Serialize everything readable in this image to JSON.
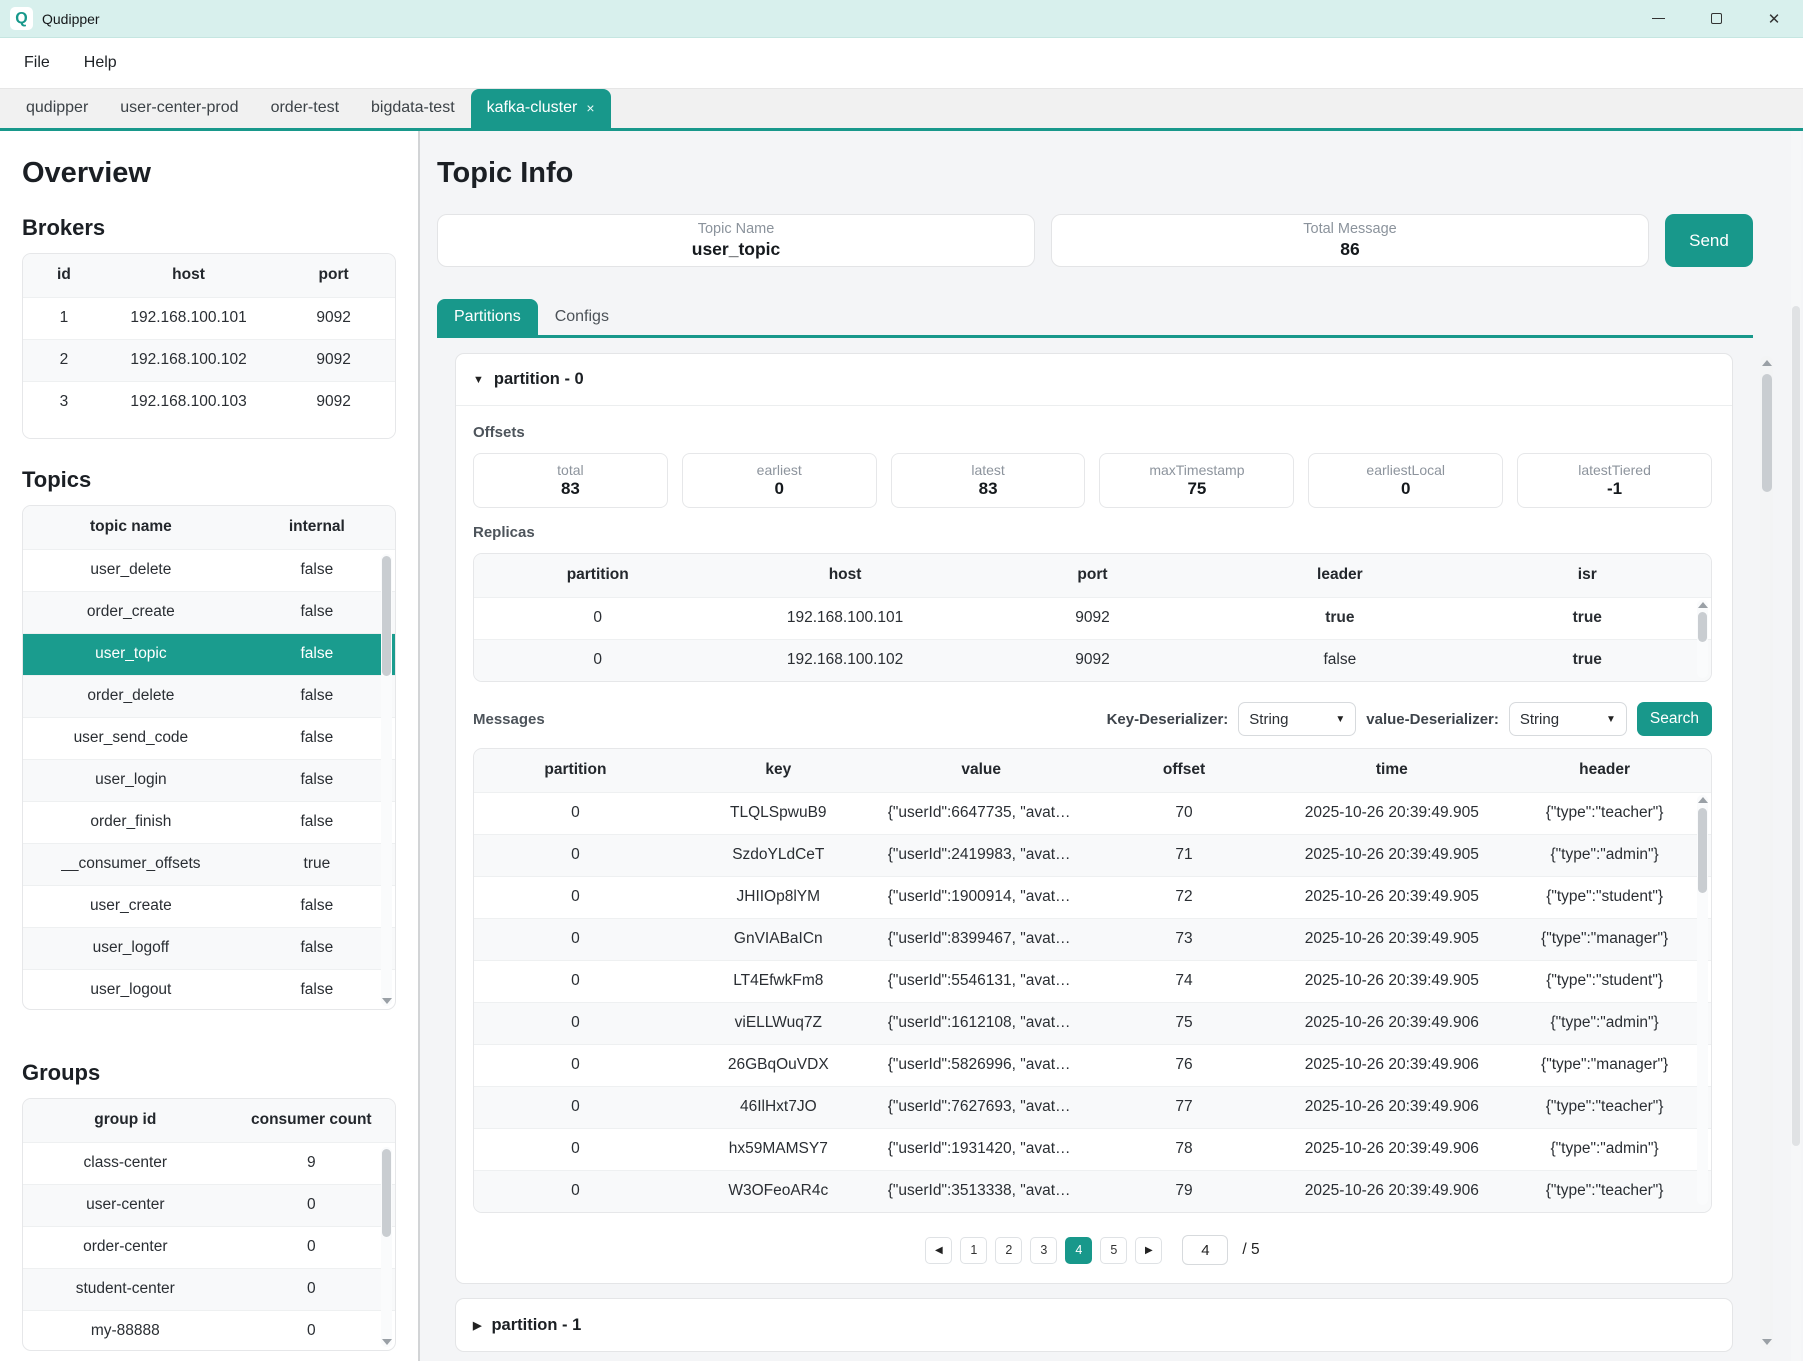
{
  "window": {
    "title": "Qudipper"
  },
  "menu": {
    "items": [
      {
        "label": "File"
      },
      {
        "label": "Help"
      }
    ]
  },
  "tabbar": {
    "tabs": [
      {
        "label": "qudipper"
      },
      {
        "label": "user-center-prod"
      },
      {
        "label": "order-test"
      },
      {
        "label": "bigdata-test"
      },
      {
        "label": "kafka-cluster",
        "close": "×"
      }
    ]
  },
  "sidebar": {
    "title": "Overview",
    "brokers": {
      "heading": "Brokers",
      "columns": [
        "id",
        "host",
        "port"
      ],
      "rows": [
        [
          "1",
          "192.168.100.101",
          "9092"
        ],
        [
          "2",
          "192.168.100.102",
          "9092"
        ],
        [
          "3",
          "192.168.100.103",
          "9092"
        ]
      ]
    },
    "topics": {
      "heading": "Topics",
      "columns": [
        "topic name",
        "internal"
      ],
      "selected": "user_topic",
      "rows": [
        [
          "user_delete",
          "false"
        ],
        [
          "order_create",
          "false"
        ],
        [
          "user_topic",
          "false"
        ],
        [
          "order_delete",
          "false"
        ],
        [
          "user_send_code",
          "false"
        ],
        [
          "user_login",
          "false"
        ],
        [
          "order_finish",
          "false"
        ],
        [
          "__consumer_offsets",
          "true"
        ],
        [
          "user_create",
          "false"
        ],
        [
          "user_logoff",
          "false"
        ],
        [
          "user_logout",
          "false"
        ]
      ]
    },
    "groups": {
      "heading": "Groups",
      "columns": [
        "group id",
        "consumer count"
      ],
      "rows": [
        [
          "class-center",
          "9"
        ],
        [
          "user-center",
          "0"
        ],
        [
          "order-center",
          "0"
        ],
        [
          "student-center",
          "0"
        ],
        [
          "my-88888",
          "0"
        ]
      ]
    }
  },
  "main": {
    "title": "Topic Info",
    "topic_name": {
      "label": "Topic Name",
      "value": "user_topic"
    },
    "total_message": {
      "label": "Total Message",
      "value": "86"
    },
    "send_label": "Send",
    "tabs": [
      {
        "label": "Partitions"
      },
      {
        "label": "Configs"
      }
    ],
    "partition0": {
      "collapse_icon": "▼",
      "title": "partition - 0",
      "offsets": {
        "heading": "Offsets",
        "cards": [
          {
            "label": "total",
            "value": "83"
          },
          {
            "label": "earliest",
            "value": "0"
          },
          {
            "label": "latest",
            "value": "83"
          },
          {
            "label": "maxTimestamp",
            "value": "75"
          },
          {
            "label": "earliestLocal",
            "value": "0"
          },
          {
            "label": "latestTiered",
            "value": "-1"
          }
        ]
      },
      "replicas": {
        "heading": "Replicas",
        "columns": [
          "partition",
          "host",
          "port",
          "leader",
          "isr"
        ],
        "rows": [
          [
            "0",
            "192.168.100.101",
            "9092",
            "true",
            "true"
          ],
          [
            "0",
            "192.168.100.102",
            "9092",
            "false",
            "true"
          ]
        ]
      },
      "messages": {
        "heading": "Messages",
        "key_deserializer": {
          "label": "Key-Deserializer:",
          "value": "String"
        },
        "value_deserializer": {
          "label": "value-Deserializer:",
          "value": "String"
        },
        "dropdown_icon": "▼",
        "search_label": "Search",
        "columns": [
          "partition",
          "key",
          "value",
          "offset",
          "time",
          "header"
        ],
        "rows": [
          [
            "0",
            "TLQLSpwuB9",
            "{\"userId\":6647735, \"avata...",
            "70",
            "2025-10-26 20:39:49.905",
            "{\"type\":\"teacher\"}"
          ],
          [
            "0",
            "SzdoYLdCeT",
            "{\"userId\":2419983, \"avata...",
            "71",
            "2025-10-26 20:39:49.905",
            "{\"type\":\"admin\"}"
          ],
          [
            "0",
            "JHIIOp8lYM",
            "{\"userId\":1900914, \"avata...",
            "72",
            "2025-10-26 20:39:49.905",
            "{\"type\":\"student\"}"
          ],
          [
            "0",
            "GnVIABaICn",
            "{\"userId\":8399467, \"avata...",
            "73",
            "2025-10-26 20:39:49.905",
            "{\"type\":\"manager\"}"
          ],
          [
            "0",
            "LT4EfwkFm8",
            "{\"userId\":5546131, \"avata...",
            "74",
            "2025-10-26 20:39:49.905",
            "{\"type\":\"student\"}"
          ],
          [
            "0",
            "viELLWuq7Z",
            "{\"userId\":1612108, \"avata...",
            "75",
            "2025-10-26 20:39:49.906",
            "{\"type\":\"admin\"}"
          ],
          [
            "0",
            "26GBqOuVDX",
            "{\"userId\":5826996, \"avata...",
            "76",
            "2025-10-26 20:39:49.906",
            "{\"type\":\"manager\"}"
          ],
          [
            "0",
            "46IlHxt7JO",
            "{\"userId\":7627693, \"avata...",
            "77",
            "2025-10-26 20:39:49.906",
            "{\"type\":\"teacher\"}"
          ],
          [
            "0",
            "hx59MAMSY7",
            "{\"userId\":1931420, \"avata...",
            "78",
            "2025-10-26 20:39:49.906",
            "{\"type\":\"admin\"}"
          ],
          [
            "0",
            "W3OFeoAR4c",
            "{\"userId\":3513338, \"avata...",
            "79",
            "2025-10-26 20:39:49.906",
            "{\"type\":\"teacher\"}"
          ]
        ]
      },
      "pagination": {
        "prev_icon": "◀",
        "next_icon": "▶",
        "pages": [
          "1",
          "2",
          "3",
          "4",
          "5"
        ],
        "active": "4",
        "page_input": "4",
        "total_label": "/ 5"
      }
    },
    "partition1": {
      "collapse_icon": "▶",
      "title": "partition - 1"
    }
  },
  "colors": {
    "teal": "#18988b",
    "titlebar": "#d8f0ed",
    "true_text": "#18988b",
    "selected_row": "#1a9c8e"
  }
}
